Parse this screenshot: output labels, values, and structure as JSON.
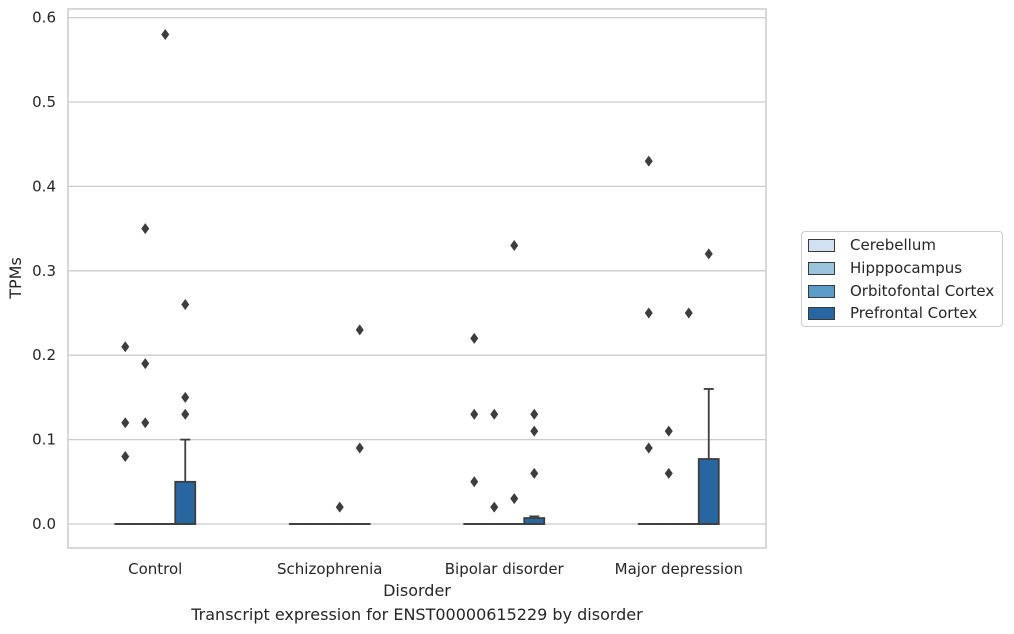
{
  "chart_data": {
    "type": "box",
    "xlabel": "Disorder",
    "ylabel": "TPMs",
    "caption": "Transcript expression for ENST00000615229 by disorder",
    "ylim": [
      -0.029,
      0.61
    ],
    "yticks": [
      "0.0",
      "0.1",
      "0.2",
      "0.3",
      "0.4",
      "0.5",
      "0.6"
    ],
    "ytick_values": [
      0.0,
      0.1,
      0.2,
      0.3,
      0.4,
      0.5,
      0.6
    ],
    "grid": "horizontal",
    "legend_position": "right",
    "categories": [
      "Control",
      "Schizophrenia",
      "Bipolar disorder",
      "Major depression"
    ],
    "series": [
      {
        "name": "Cerebellum",
        "color": "#d1e1f1",
        "boxes": [
          {
            "q1": 0,
            "median": 0,
            "q3": 0,
            "whisker_low": 0,
            "whisker_high": 0,
            "outliers": [
              0.08,
              0.12,
              0.21
            ]
          },
          {
            "q1": 0,
            "median": 0,
            "q3": 0,
            "whisker_low": 0,
            "whisker_high": 0,
            "outliers": []
          },
          {
            "q1": 0,
            "median": 0,
            "q3": 0,
            "whisker_low": 0,
            "whisker_high": 0,
            "outliers": [
              0.05,
              0.13,
              0.22
            ]
          },
          {
            "q1": 0,
            "median": 0,
            "q3": 0,
            "whisker_low": 0,
            "whisker_high": 0,
            "outliers": [
              0.09,
              0.25,
              0.43
            ]
          }
        ]
      },
      {
        "name": "Hipppocampus",
        "color": "#9ac3dc",
        "boxes": [
          {
            "q1": 0,
            "median": 0,
            "q3": 0,
            "whisker_low": 0,
            "whisker_high": 0,
            "outliers": [
              0.12,
              0.19,
              0.35
            ]
          },
          {
            "q1": 0,
            "median": 0,
            "q3": 0,
            "whisker_low": 0,
            "whisker_high": 0,
            "outliers": []
          },
          {
            "q1": 0,
            "median": 0,
            "q3": 0,
            "whisker_low": 0,
            "whisker_high": 0,
            "outliers": [
              0.02,
              0.13
            ]
          },
          {
            "q1": 0,
            "median": 0,
            "q3": 0,
            "whisker_low": 0,
            "whisker_high": 0,
            "outliers": [
              0.06,
              0.11
            ]
          }
        ]
      },
      {
        "name": "Orbitofontal Cortex",
        "color": "#5a9cc7",
        "boxes": [
          {
            "q1": 0,
            "median": 0,
            "q3": 0,
            "whisker_low": 0,
            "whisker_high": 0,
            "outliers": [
              0.58
            ]
          },
          {
            "q1": 0,
            "median": 0,
            "q3": 0,
            "whisker_low": 0,
            "whisker_high": 0,
            "outliers": [
              0.02
            ]
          },
          {
            "q1": 0,
            "median": 0,
            "q3": 0,
            "whisker_low": 0,
            "whisker_high": 0,
            "outliers": [
              0.03,
              0.33
            ]
          },
          {
            "q1": 0,
            "median": 0,
            "q3": 0,
            "whisker_low": 0,
            "whisker_high": 0,
            "outliers": [
              0.25
            ]
          }
        ]
      },
      {
        "name": "Prefrontal Cortex",
        "color": "#2866a1",
        "boxes": [
          {
            "q1": 0,
            "median": 0,
            "q3": 0.05,
            "whisker_low": 0,
            "whisker_high": 0.1,
            "outliers": [
              0.13,
              0.15,
              0.26
            ]
          },
          {
            "q1": 0,
            "median": 0,
            "q3": 0,
            "whisker_low": 0,
            "whisker_high": 0,
            "outliers": [
              0.09,
              0.23
            ]
          },
          {
            "q1": 0,
            "median": 0,
            "q3": 0.007,
            "whisker_low": 0,
            "whisker_high": 0.009,
            "outliers": [
              0.06,
              0.11,
              0.13
            ]
          },
          {
            "q1": 0,
            "median": 0,
            "q3": 0.077,
            "whisker_low": 0,
            "whisker_high": 0.16,
            "outliers": [
              0.32
            ]
          }
        ]
      }
    ]
  }
}
